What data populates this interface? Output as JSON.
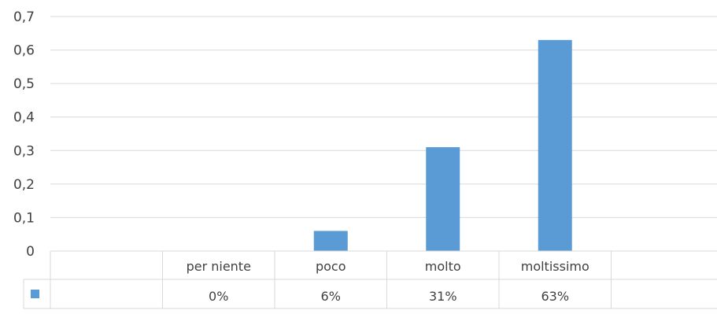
{
  "chart_data": {
    "type": "bar",
    "title": "",
    "xlabel": "",
    "ylabel": "",
    "categories": [
      "",
      "per niente",
      "poco",
      "molto",
      "moltissimo",
      ""
    ],
    "series": [
      {
        "values": [
          null,
          0,
          0.06,
          0.31,
          0.63,
          null
        ],
        "labels": [
          "",
          "0%",
          "6%",
          "31%",
          "63%",
          ""
        ],
        "color": "#5b9bd5"
      }
    ],
    "ylim": [
      0,
      0.7
    ],
    "yticks": [
      "0",
      "0,1",
      "0,2",
      "0,3",
      "0,4",
      "0,5",
      "0,6",
      "0,7"
    ],
    "grid": true,
    "data_table": true
  }
}
